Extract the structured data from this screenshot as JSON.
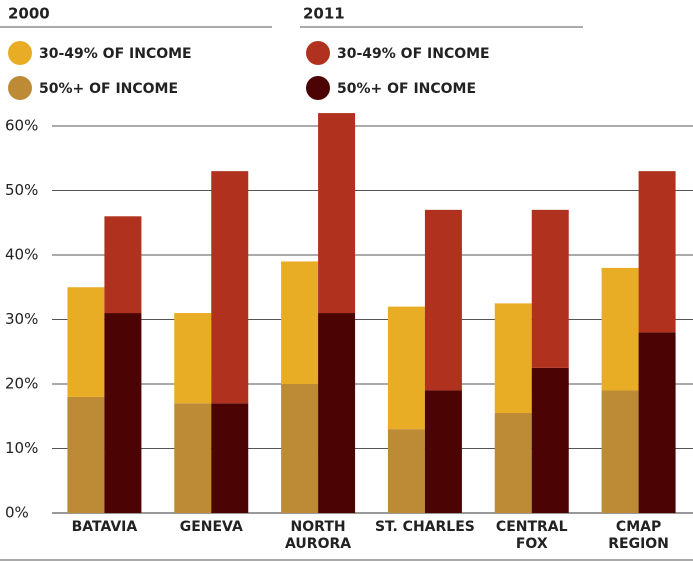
{
  "chart_data": {
    "type": "grouped-stacked-bar",
    "categories": [
      "BATAVIA",
      "GENEVA",
      "NORTH\nAURORA",
      "ST. CHARLES",
      "CENTRAL\nFOX",
      "CMAP\nREGION"
    ],
    "groups": [
      {
        "name": "2000",
        "series": [
          {
            "name": "50%+ OF INCOME",
            "color": "#bd8a35",
            "values": [
              18,
              17,
              20,
              13,
              15.5,
              19
            ]
          },
          {
            "name": "30-49% OF INCOME",
            "color": "#e8ac25",
            "values": [
              17,
              14,
              19,
              19,
              17,
              19
            ]
          }
        ]
      },
      {
        "name": "2011",
        "series": [
          {
            "name": "50%+ OF INCOME",
            "color": "#4b0303",
            "values": [
              31,
              17,
              31,
              19,
              22.5,
              28
            ]
          },
          {
            "name": "30-49% OF INCOME",
            "color": "#b0311e",
            "values": [
              15,
              36,
              31,
              28,
              24.5,
              25
            ]
          }
        ]
      }
    ],
    "ylim": [
      0,
      60
    ],
    "yticks": [
      {
        "value": 0,
        "label": "0%"
      },
      {
        "value": 10,
        "label": "10%"
      },
      {
        "value": 20,
        "label": "20%"
      },
      {
        "value": 30,
        "label": "30%"
      },
      {
        "value": 40,
        "label": "40%"
      },
      {
        "value": 50,
        "label": "50%"
      },
      {
        "value": 60,
        "label": "60%"
      }
    ],
    "grid": true
  }
}
